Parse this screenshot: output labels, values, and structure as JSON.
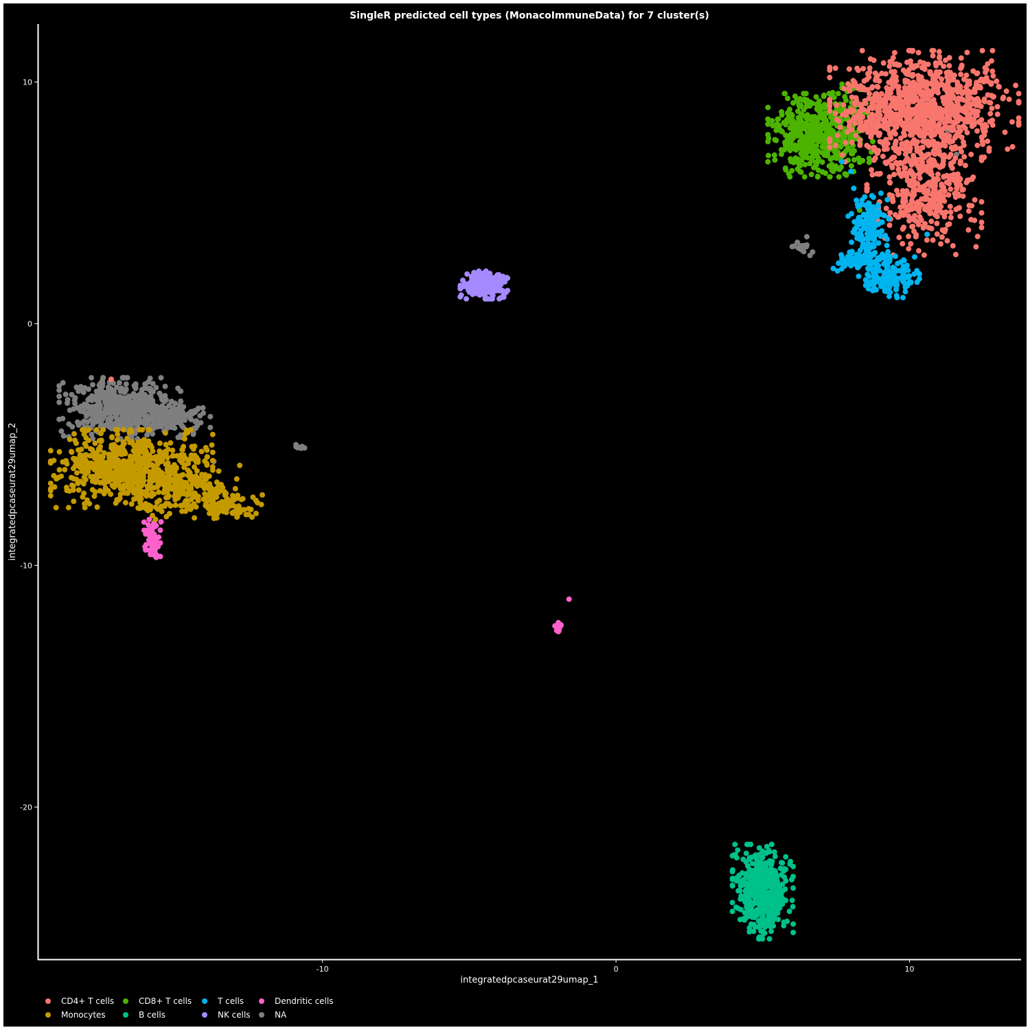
{
  "chart_data": {
    "type": "scatter",
    "title": "SingleR predicted cell types (MonacoImmuneData) for 7 cluster(s)",
    "xlabel": "integratedpcaseurat29umap_1",
    "ylabel": "integratedpcaseurat29umap_2",
    "xlim": [
      -19.7,
      13.8
    ],
    "ylim": [
      -26.3,
      12.4
    ],
    "x_ticks": [
      -10,
      0,
      10
    ],
    "y_ticks": [
      10,
      0,
      -10,
      -20
    ],
    "x_tick_labels": [
      "-10",
      "0",
      "10"
    ],
    "y_tick_labels": [
      "10",
      "0",
      "-10",
      "-20"
    ],
    "grid": false,
    "background": "#000000",
    "legend_position": "bottom-left",
    "series": [
      {
        "name": "CD4+ T cells",
        "color": "#F8766D",
        "clusters": [
          {
            "cx": 10.5,
            "cy": 9.0,
            "sx": 1.4,
            "sy": 1.0,
            "n": 900
          },
          {
            "cx": 10.5,
            "cy": 5.6,
            "sx": 0.85,
            "sy": 1.2,
            "n": 420
          },
          {
            "cx": 8.8,
            "cy": 8.2,
            "sx": 0.6,
            "sy": 0.6,
            "n": 50
          }
        ],
        "points": [
          [
            -17.2,
            -2.3
          ],
          [
            8.8,
            3.5
          ]
        ]
      },
      {
        "name": "CD8+ T cells",
        "color": "#4CB400",
        "clusters": [
          {
            "cx": 6.9,
            "cy": 7.8,
            "sx": 0.75,
            "sy": 0.75,
            "n": 500
          },
          {
            "cx": 7.9,
            "cy": 8.3,
            "sx": 0.45,
            "sy": 0.7,
            "n": 40
          }
        ],
        "points": [
          [
            7.8,
            6.2
          ],
          [
            8.3,
            4.7
          ],
          [
            8.7,
            7.1
          ]
        ]
      },
      {
        "name": "T cells",
        "color": "#00B4EF",
        "clusters": [
          {
            "cx": 8.6,
            "cy": 4.2,
            "sx": 0.3,
            "sy": 0.55,
            "n": 120
          },
          {
            "cx": 9.3,
            "cy": 2.0,
            "sx": 0.45,
            "sy": 0.4,
            "n": 140
          },
          {
            "cx": 8.3,
            "cy": 2.6,
            "sx": 0.45,
            "sy": 0.2,
            "n": 90
          },
          {
            "cx": 8.6,
            "cy": 3.2,
            "sx": 0.15,
            "sy": 0.3,
            "n": 25
          }
        ],
        "points": [
          [
            8.0,
            6.3
          ],
          [
            8.1,
            5.6
          ],
          [
            7.7,
            6.7
          ],
          [
            10.6,
            3.7
          ],
          [
            8.9,
            4.5
          ]
        ]
      },
      {
        "name": "Dendritic cells",
        "color": "#FF61CC",
        "clusters": [
          {
            "cx": -15.8,
            "cy": -9.0,
            "sx": 0.12,
            "sy": 0.35,
            "n": 60
          },
          {
            "cx": -1.95,
            "cy": -12.6,
            "sx": 0.07,
            "sy": 0.1,
            "n": 12
          }
        ],
        "points": [
          [
            -1.6,
            -11.4
          ],
          [
            -15.9,
            -8.1
          ],
          [
            -15.5,
            -8.2
          ]
        ]
      },
      {
        "name": "Monocytes",
        "color": "#C49A00",
        "clusters": [
          {
            "cx": -16.5,
            "cy": -6.0,
            "sx": 1.2,
            "sy": 0.7,
            "n": 750
          },
          {
            "cx": -14.2,
            "cy": -7.0,
            "sx": 0.7,
            "sy": 0.5,
            "n": 120
          },
          {
            "cx": -13.2,
            "cy": -7.5,
            "sx": 0.5,
            "sy": 0.25,
            "n": 70
          },
          {
            "cx": -15.9,
            "cy": -7.7,
            "sx": 0.3,
            "sy": 0.3,
            "n": 30
          }
        ],
        "points": [
          [
            -12.6,
            -7.9
          ],
          [
            -12.4,
            -8.0
          ],
          [
            -12.8,
            -7.8
          ]
        ]
      },
      {
        "name": "B cells",
        "color": "#00C08B",
        "clusters": [
          {
            "cx": 5.0,
            "cy": -23.5,
            "sx": 0.45,
            "sy": 0.85,
            "n": 500
          }
        ],
        "points": []
      },
      {
        "name": "NK cells",
        "color": "#A58AFF",
        "clusters": [
          {
            "cx": -4.5,
            "cy": 1.6,
            "sx": 0.35,
            "sy": 0.25,
            "n": 260
          }
        ],
        "points": []
      },
      {
        "name": "NA",
        "color": "#7F7F7F",
        "clusters": [
          {
            "cx": -16.9,
            "cy": -3.5,
            "sx": 0.9,
            "sy": 0.55,
            "n": 520
          },
          {
            "cx": -15.2,
            "cy": -3.9,
            "sx": 0.6,
            "sy": 0.35,
            "n": 120
          },
          {
            "cx": -10.8,
            "cy": -5.1,
            "sx": 0.15,
            "sy": 0.05,
            "n": 10
          },
          {
            "cx": 6.3,
            "cy": 3.1,
            "sx": 0.25,
            "sy": 0.12,
            "n": 14
          }
        ],
        "points": [
          [
            11.6,
            7.0
          ],
          [
            10.5,
            7.6
          ],
          [
            11.3,
            8.0
          ],
          [
            -13.7,
            -5.7
          ],
          [
            10.6,
            7.0
          ],
          [
            6.5,
            3.6
          ]
        ]
      }
    ],
    "legend": {
      "rows": [
        [
          "CD4+ T cells",
          "CD8+ T cells",
          "T cells",
          "Dendritic cells"
        ],
        [
          "Monocytes",
          "B cells",
          "NK cells",
          "NA"
        ]
      ]
    }
  }
}
